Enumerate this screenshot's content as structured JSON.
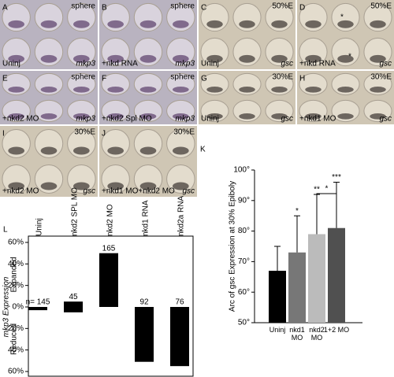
{
  "panels": [
    {
      "letter": "A",
      "stage": "sphere",
      "condition": "Uninj",
      "probe": "mkp3"
    },
    {
      "letter": "B",
      "stage": "sphere",
      "condition": "+nkd RNA",
      "probe": "mkp3"
    },
    {
      "letter": "C",
      "stage": "50%E",
      "condition": "Uninj",
      "probe": "gsc"
    },
    {
      "letter": "D",
      "stage": "50%E",
      "condition": "+nkd RNA",
      "probe": "gsc",
      "marks": [
        "*",
        "*"
      ]
    },
    {
      "letter": "E",
      "stage": "sphere",
      "condition": "+nkd2 MO",
      "probe": "mkp3"
    },
    {
      "letter": "F",
      "stage": "sphere",
      "condition": "+nkd2 Spl MO",
      "probe": "mkp3"
    },
    {
      "letter": "G",
      "stage": "30%E",
      "condition": "Uninj",
      "probe": "gsc"
    },
    {
      "letter": "H",
      "stage": "30%E",
      "condition": "+nkd1 MO",
      "probe": "gsc"
    },
    {
      "letter": "I",
      "stage": "30%E",
      "condition": "+nkd2 MO",
      "probe": "gsc"
    },
    {
      "letter": "J",
      "stage": "30%E",
      "condition": "+nkd1 MO+nkd2 MO",
      "probe": "gsc"
    }
  ],
  "chart_data": [
    {
      "type": "bar",
      "panel": "K",
      "ylabel": "Arc of gsc Expression at 30% Epiboly",
      "categories": [
        "Uninj",
        "nkd1 MO",
        "nkd2 MO",
        "1+2 MO"
      ],
      "values": [
        67,
        73,
        79,
        81
      ],
      "errors": [
        8,
        12,
        13,
        15
      ],
      "colors": [
        "#000000",
        "#777777",
        "#bbbbbb",
        "#505050"
      ],
      "significance": [
        null,
        "*",
        "**",
        "***"
      ],
      "bracket": {
        "from": 2,
        "to": 3,
        "label": "*"
      },
      "ylim": [
        50,
        100
      ],
      "yticks": [
        {
          "value": 50,
          "label": "50°"
        },
        {
          "value": 60,
          "label": "60°"
        },
        {
          "value": 70,
          "label": "70°"
        },
        {
          "value": 80,
          "label": "80°"
        },
        {
          "value": 90,
          "label": "90°"
        },
        {
          "value": 100,
          "label": "100°"
        }
      ]
    },
    {
      "type": "bar",
      "panel": "L",
      "ylabel": "mkp3 Expression",
      "upper_label": "Expanded",
      "lower_label": "Reduced",
      "categories": [
        "Uninj",
        "nkd2 SPL MO",
        "nkd2 MO",
        "nkd1 RNA",
        "nkd2a RNA"
      ],
      "series": [
        {
          "color": "#000000",
          "values": [
            null,
            5,
            50,
            null,
            null
          ]
        },
        {
          "color": "#000000",
          "values": [
            -3,
            -5,
            null,
            -51,
            -55
          ]
        }
      ],
      "n_labels": [
        "n= 145",
        "45",
        "165",
        "92",
        "76"
      ],
      "ylim": [
        -60,
        60
      ],
      "yticks": [
        {
          "value": -60,
          "label": "60%"
        },
        {
          "value": -40,
          "label": "40%"
        },
        {
          "value": -20,
          "label": "20%"
        },
        {
          "value": 0,
          "label": "0%"
        },
        {
          "value": 20,
          "label": "20%"
        },
        {
          "value": 40,
          "label": "40%"
        },
        {
          "value": 60,
          "label": "60%"
        }
      ]
    }
  ]
}
